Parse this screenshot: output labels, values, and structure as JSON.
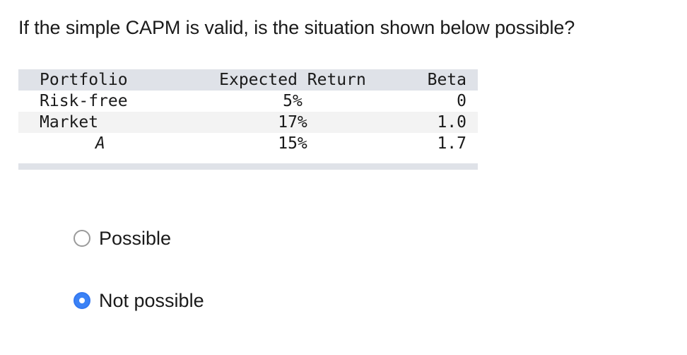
{
  "question": {
    "text": "If the simple CAPM is valid, is the situation shown below possible?"
  },
  "table": {
    "headers": [
      "Portfolio",
      "Expected Return",
      "Beta"
    ],
    "rows": [
      {
        "portfolio": "Risk-free",
        "expected_return": "5%",
        "beta": "0"
      },
      {
        "portfolio": "Market",
        "expected_return": "17%",
        "beta": "1.0"
      },
      {
        "portfolio": "A",
        "expected_return": "15%",
        "beta": "1.7"
      }
    ]
  },
  "options": [
    {
      "label": "Possible",
      "selected": false
    },
    {
      "label": "Not possible",
      "selected": true
    }
  ],
  "colors": {
    "header_bg": "#dfe2e8",
    "radio_selected": "#3b82f6"
  }
}
